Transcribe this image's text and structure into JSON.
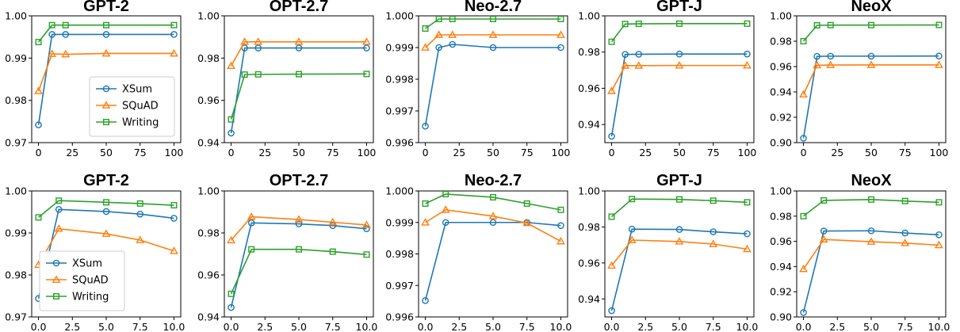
{
  "colors": {
    "XSum": "#1f77b4",
    "SQuAD": "#ff7f0e",
    "Writing": "#2ca02c"
  },
  "markers": {
    "XSum": "circle",
    "SQuAD": "triangle",
    "Writing": "square"
  },
  "legend_labels": [
    "XSum",
    "SQuAD",
    "Writing"
  ],
  "chart_data": [
    {
      "type": "line",
      "title": "GPT-2",
      "x": [
        0,
        10,
        20,
        50,
        100
      ],
      "xlim": [
        -5,
        105
      ],
      "ylim": [
        0.97,
        1.0
      ],
      "xticks": [
        0,
        25,
        50,
        75,
        100
      ],
      "xtick_labels": [
        "0",
        "25",
        "50",
        "75",
        "100"
      ],
      "yticks": [
        0.97,
        0.98,
        0.99,
        1.0
      ],
      "ytick_labels": [
        "0.97",
        "0.98",
        "0.99",
        "1.00"
      ],
      "legend": "bottom-right",
      "series": [
        {
          "name": "XSum",
          "values": [
            0.9742,
            0.9956,
            0.9956,
            0.9956,
            0.9956
          ]
        },
        {
          "name": "SQuAD",
          "values": [
            0.9822,
            0.991,
            0.9909,
            0.9911,
            0.9911
          ]
        },
        {
          "name": "Writing",
          "values": [
            0.9938,
            0.9978,
            0.9978,
            0.9978,
            0.9978
          ]
        }
      ]
    },
    {
      "type": "line",
      "title": "OPT-2.7",
      "x": [
        0,
        10,
        20,
        50,
        100
      ],
      "xlim": [
        -5,
        105
      ],
      "ylim": [
        0.94,
        1.0
      ],
      "xticks": [
        0,
        25,
        50,
        75,
        100
      ],
      "xtick_labels": [
        "0",
        "25",
        "50",
        "75",
        "100"
      ],
      "yticks": [
        0.94,
        0.96,
        0.98,
        1.0
      ],
      "ytick_labels": [
        "0.94",
        "0.96",
        "0.98",
        "1.00"
      ],
      "series": [
        {
          "name": "XSum",
          "values": [
            0.9445,
            0.9848,
            0.9848,
            0.9848,
            0.9848
          ]
        },
        {
          "name": "SQuAD",
          "values": [
            0.9763,
            0.9877,
            0.9877,
            0.9877,
            0.9877
          ]
        },
        {
          "name": "Writing",
          "values": [
            0.951,
            0.9722,
            0.9723,
            0.9724,
            0.9725
          ]
        }
      ]
    },
    {
      "type": "line",
      "title": "Neo-2.7",
      "x": [
        0,
        10,
        20,
        50,
        100
      ],
      "xlim": [
        -5,
        105
      ],
      "ylim": [
        0.996,
        1.0
      ],
      "xticks": [
        0,
        25,
        50,
        75,
        100
      ],
      "xtick_labels": [
        "0",
        "25",
        "50",
        "75",
        "100"
      ],
      "yticks": [
        0.996,
        0.997,
        0.998,
        0.999,
        1.0
      ],
      "ytick_labels": [
        "0.996",
        "0.997",
        "0.998",
        "0.999",
        "1.000"
      ],
      "series": [
        {
          "name": "XSum",
          "values": [
            0.99652,
            0.999,
            0.9991,
            0.999,
            0.999
          ]
        },
        {
          "name": "SQuAD",
          "values": [
            0.999,
            0.9994,
            0.9994,
            0.9994,
            0.9994
          ]
        },
        {
          "name": "Writing",
          "values": [
            0.9996,
            0.9999,
            0.9999,
            0.9999,
            0.9999
          ]
        }
      ]
    },
    {
      "type": "line",
      "title": "GPT-J",
      "x": [
        0,
        10,
        20,
        50,
        100
      ],
      "xlim": [
        -5,
        105
      ],
      "ylim": [
        0.93,
        1.0
      ],
      "xticks": [
        0,
        25,
        50,
        75,
        100
      ],
      "xtick_labels": [
        "0",
        "25",
        "50",
        "75",
        "100"
      ],
      "yticks": [
        0.94,
        0.96,
        0.98,
        1.0
      ],
      "ytick_labels": [
        "0.94",
        "0.96",
        "0.98",
        "1.00"
      ],
      "series": [
        {
          "name": "XSum",
          "values": [
            0.9335,
            0.9787,
            0.9788,
            0.9789,
            0.9789
          ]
        },
        {
          "name": "SQuAD",
          "values": [
            0.9585,
            0.9725,
            0.9725,
            0.9726,
            0.9726
          ]
        },
        {
          "name": "Writing",
          "values": [
            0.9857,
            0.9955,
            0.9956,
            0.9957,
            0.9957
          ]
        }
      ]
    },
    {
      "type": "line",
      "title": "NeoX",
      "x": [
        0,
        10,
        20,
        50,
        100
      ],
      "xlim": [
        -5,
        105
      ],
      "ylim": [
        0.9,
        1.0
      ],
      "xticks": [
        0,
        25,
        50,
        75,
        100
      ],
      "xtick_labels": [
        "0",
        "25",
        "50",
        "75",
        "100"
      ],
      "yticks": [
        0.9,
        0.92,
        0.94,
        0.96,
        0.98,
        1.0
      ],
      "ytick_labels": [
        "0.90",
        "0.92",
        "0.94",
        "0.96",
        "0.98",
        "1.00"
      ],
      "series": [
        {
          "name": "XSum",
          "values": [
            0.9035,
            0.968,
            0.9682,
            0.9682,
            0.9683
          ]
        },
        {
          "name": "SQuAD",
          "values": [
            0.938,
            0.961,
            0.9612,
            0.9613,
            0.9613
          ]
        },
        {
          "name": "Writing",
          "values": [
            0.98,
            0.9925,
            0.9927,
            0.9927,
            0.9928
          ]
        }
      ]
    },
    {
      "type": "line",
      "title": "GPT-2",
      "x": [
        0,
        1.5,
        5,
        7.5,
        10
      ],
      "xlim": [
        -0.5,
        10.5
      ],
      "ylim": [
        0.97,
        1.0
      ],
      "xticks": [
        0,
        2.5,
        5,
        7.5,
        10
      ],
      "xtick_labels": [
        "0.0",
        "2.5",
        "5.0",
        "7.5",
        "10.0"
      ],
      "yticks": [
        0.97,
        0.98,
        0.99,
        1.0
      ],
      "ytick_labels": [
        "0.97",
        "0.98",
        "0.99",
        "1.00"
      ],
      "legend": "bottom-left",
      "series": [
        {
          "name": "XSum",
          "values": [
            0.9744,
            0.9956,
            0.9951,
            0.9945,
            0.9935
          ]
        },
        {
          "name": "SQuAD",
          "values": [
            0.9824,
            0.991,
            0.9898,
            0.9883,
            0.9857
          ]
        },
        {
          "name": "Writing",
          "values": [
            0.9937,
            0.9977,
            0.9973,
            0.997,
            0.9966
          ]
        }
      ]
    },
    {
      "type": "line",
      "title": "OPT-2.7",
      "x": [
        0,
        1.5,
        5,
        7.5,
        10
      ],
      "xlim": [
        -0.5,
        10.5
      ],
      "ylim": [
        0.94,
        1.0
      ],
      "xticks": [
        0,
        2.5,
        5,
        7.5,
        10
      ],
      "xtick_labels": [
        "0.0",
        "2.5",
        "5.0",
        "7.5",
        "10.0"
      ],
      "yticks": [
        0.94,
        0.96,
        0.98,
        1.0
      ],
      "ytick_labels": [
        "0.94",
        "0.96",
        "0.98",
        "1.00"
      ],
      "series": [
        {
          "name": "XSum",
          "values": [
            0.9445,
            0.9848,
            0.9843,
            0.9835,
            0.982
          ]
        },
        {
          "name": "SQuAD",
          "values": [
            0.9765,
            0.9877,
            0.9864,
            0.9851,
            0.9838
          ]
        },
        {
          "name": "Writing",
          "values": [
            0.951,
            0.9722,
            0.9722,
            0.9711,
            0.9697
          ]
        }
      ]
    },
    {
      "type": "line",
      "title": "Neo-2.7",
      "x": [
        0,
        1.5,
        5,
        7.5,
        10
      ],
      "xlim": [
        -0.5,
        10.5
      ],
      "ylim": [
        0.996,
        1.0
      ],
      "xticks": [
        0,
        2.5,
        5,
        7.5,
        10
      ],
      "xtick_labels": [
        "0.0",
        "2.5",
        "5.0",
        "7.5",
        "10.0"
      ],
      "yticks": [
        0.996,
        0.997,
        0.998,
        0.999,
        1.0
      ],
      "ytick_labels": [
        "0.996",
        "0.997",
        "0.998",
        "0.999",
        "1.000"
      ],
      "series": [
        {
          "name": "XSum",
          "values": [
            0.99652,
            0.999,
            0.999,
            0.999,
            0.9989
          ]
        },
        {
          "name": "SQuAD",
          "values": [
            0.999,
            0.9994,
            0.9992,
            0.99898,
            0.9984
          ]
        },
        {
          "name": "Writing",
          "values": [
            0.9996,
            0.9999,
            0.9998,
            0.9996,
            0.9994
          ]
        }
      ]
    },
    {
      "type": "line",
      "title": "GPT-J",
      "x": [
        0,
        1.5,
        5,
        7.5,
        10
      ],
      "xlim": [
        -0.5,
        10.5
      ],
      "ylim": [
        0.93,
        1.0
      ],
      "xticks": [
        0,
        2.5,
        5,
        7.5,
        10
      ],
      "xtick_labels": [
        "0.0",
        "2.5",
        "5.0",
        "7.5",
        "10.0"
      ],
      "yticks": [
        0.94,
        0.96,
        0.98,
        1.0
      ],
      "ytick_labels": [
        "0.94",
        "0.96",
        "0.98",
        "1.00"
      ],
      "series": [
        {
          "name": "XSum",
          "values": [
            0.9335,
            0.9788,
            0.9786,
            0.9773,
            0.9762
          ]
        },
        {
          "name": "SQuAD",
          "values": [
            0.9585,
            0.9727,
            0.9719,
            0.9705,
            0.9677
          ]
        },
        {
          "name": "Writing",
          "values": [
            0.9857,
            0.9955,
            0.9953,
            0.9946,
            0.9937
          ]
        }
      ]
    },
    {
      "type": "line",
      "title": "NeoX",
      "x": [
        0,
        1.5,
        5,
        7.5,
        10
      ],
      "xlim": [
        -0.5,
        10.5
      ],
      "ylim": [
        0.9,
        1.0
      ],
      "xticks": [
        0,
        2.5,
        5,
        7.5,
        10
      ],
      "xtick_labels": [
        "0.0",
        "2.5",
        "5.0",
        "7.5",
        "10.0"
      ],
      "yticks": [
        0.9,
        0.92,
        0.94,
        0.96,
        0.98,
        1.0
      ],
      "ytick_labels": [
        "0.90",
        "0.92",
        "0.94",
        "0.96",
        "0.98",
        "1.00"
      ],
      "series": [
        {
          "name": "XSum",
          "values": [
            0.9035,
            0.9682,
            0.9684,
            0.9666,
            0.9652
          ]
        },
        {
          "name": "SQuAD",
          "values": [
            0.938,
            0.9615,
            0.9597,
            0.9586,
            0.957
          ]
        },
        {
          "name": "Writing",
          "values": [
            0.98,
            0.9925,
            0.9932,
            0.992,
            0.991
          ]
        }
      ]
    }
  ]
}
